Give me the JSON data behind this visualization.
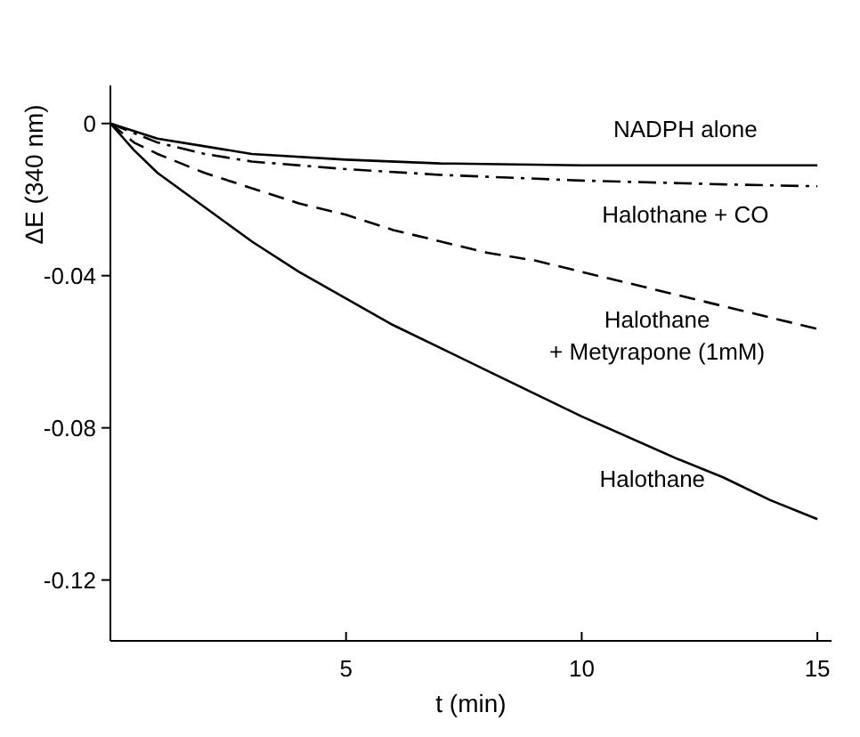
{
  "chart_data": {
    "type": "line",
    "xlabel": "t (min)",
    "ylabel": "ΔE (340 nm)",
    "xlim": [
      0,
      15.3
    ],
    "xticks": [
      5,
      10,
      15
    ],
    "ylim": [
      -0.136,
      0.01
    ],
    "yticks": [
      0,
      -0.04,
      -0.08,
      -0.12
    ],
    "grid": false,
    "series": [
      {
        "name": "NADPH alone",
        "color": "#000000",
        "line_style": "solid",
        "x": [
          0,
          1,
          2,
          3,
          5,
          7,
          10,
          15
        ],
        "values": [
          0,
          -0.004,
          -0.006,
          -0.008,
          -0.0095,
          -0.0105,
          -0.011,
          -0.011
        ]
      },
      {
        "name": "Halothane + CO",
        "color": "#000000",
        "line_style": "dashdot",
        "x": [
          0,
          1,
          2,
          3,
          5,
          7,
          10,
          13,
          15
        ],
        "values": [
          0,
          -0.005,
          -0.008,
          -0.01,
          -0.012,
          -0.0135,
          -0.015,
          -0.016,
          -0.0165
        ]
      },
      {
        "name": "Halothane + Metyrapone (1mM)",
        "color": "#000000",
        "line_style": "dashed",
        "x": [
          0,
          0.5,
          1,
          2,
          3,
          4,
          5,
          6,
          7,
          8,
          9,
          10,
          12,
          14,
          15
        ],
        "values": [
          0,
          -0.005,
          -0.008,
          -0.013,
          -0.017,
          -0.021,
          -0.024,
          -0.028,
          -0.031,
          -0.034,
          -0.036,
          -0.039,
          -0.045,
          -0.051,
          -0.054
        ]
      },
      {
        "name": "Halothane",
        "color": "#000000",
        "line_style": "solid",
        "x": [
          0,
          0.5,
          1,
          2,
          3,
          4,
          5,
          6,
          7,
          8,
          10,
          12,
          13,
          14,
          15
        ],
        "values": [
          0,
          -0.007,
          -0.013,
          -0.022,
          -0.031,
          -0.039,
          -0.046,
          -0.053,
          -0.059,
          -0.065,
          -0.077,
          -0.088,
          -0.093,
          -0.099,
          -0.104
        ]
      }
    ]
  }
}
